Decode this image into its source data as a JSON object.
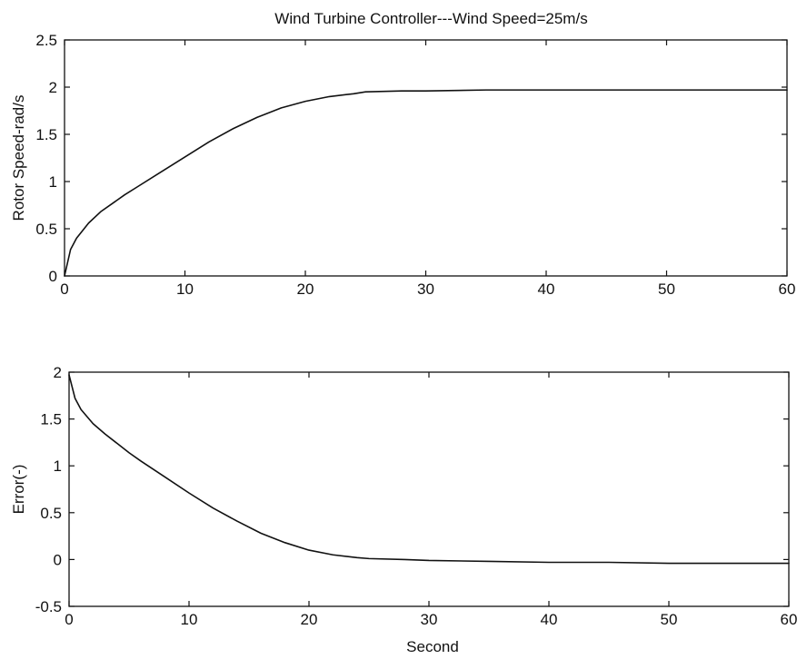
{
  "chart_data": [
    {
      "type": "line",
      "title": "Wind Turbine Controller---Wind Speed=25m/s",
      "xlabel": "",
      "ylabel": "Rotor Speed-rad/s",
      "xlim": [
        0,
        60
      ],
      "ylim": [
        0,
        2.5
      ],
      "xticks": [
        "0",
        "10",
        "20",
        "30",
        "40",
        "50",
        "60"
      ],
      "yticks": [
        "0",
        "0.5",
        "1",
        "1.5",
        "2",
        "2.5"
      ],
      "grid": false,
      "line_color": "#111111",
      "series": [
        {
          "x": [
            0,
            0.5,
            1,
            2,
            3,
            4,
            5,
            6,
            8,
            10,
            12,
            14,
            16,
            18,
            20,
            22,
            24,
            25,
            28,
            30,
            35,
            40,
            45,
            50,
            55,
            60
          ],
          "y": [
            0,
            0.28,
            0.4,
            0.56,
            0.68,
            0.77,
            0.86,
            0.94,
            1.1,
            1.26,
            1.42,
            1.56,
            1.68,
            1.78,
            1.85,
            1.9,
            1.93,
            1.95,
            1.96,
            1.96,
            1.97,
            1.97,
            1.97,
            1.97,
            1.97,
            1.97
          ]
        }
      ]
    },
    {
      "type": "line",
      "title": "",
      "xlabel": "Second",
      "ylabel": "Error(-)",
      "xlim": [
        0,
        60
      ],
      "ylim": [
        -0.5,
        2
      ],
      "xticks": [
        "0",
        "10",
        "20",
        "30",
        "40",
        "50",
        "60"
      ],
      "yticks": [
        "-0.5",
        "0",
        "0.5",
        "1",
        "1.5",
        "2"
      ],
      "grid": false,
      "line_color": "#111111",
      "series": [
        {
          "x": [
            0,
            0.5,
            1,
            2,
            3,
            4,
            5,
            6,
            8,
            10,
            12,
            14,
            16,
            18,
            20,
            22,
            24,
            25,
            28,
            30,
            35,
            40,
            45,
            50,
            55,
            60
          ],
          "y": [
            1.97,
            1.72,
            1.6,
            1.45,
            1.34,
            1.24,
            1.14,
            1.05,
            0.88,
            0.71,
            0.55,
            0.41,
            0.28,
            0.18,
            0.1,
            0.05,
            0.02,
            0.01,
            0.0,
            -0.01,
            -0.02,
            -0.03,
            -0.03,
            -0.04,
            -0.04,
            -0.04
          ]
        }
      ]
    }
  ]
}
